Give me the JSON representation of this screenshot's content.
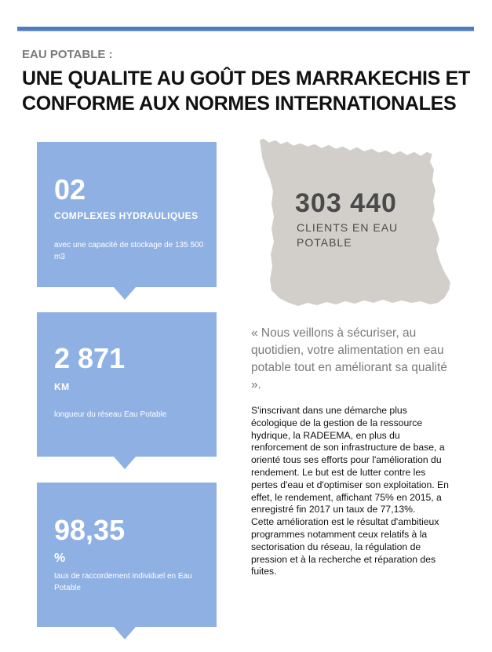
{
  "header": {
    "kicker": "EAU POTABLE :",
    "title": "UNE QUALITE AU GOÛT DES MARRAKECHIS ET CONFORME AUX NORMES INTERNATIONALES"
  },
  "stats": [
    {
      "value": "02",
      "unit": "COMPLEXES  HYDRAULIQUES",
      "description": "avec une capacité  de stockage de 135 500 m3"
    },
    {
      "value": "2 871",
      "unit": "KM",
      "description": "longueur du réseau Eau Potable"
    },
    {
      "value": "98,35",
      "unit": "%",
      "description": "taux de raccordement  individuel  en Eau Potable"
    }
  ],
  "clients": {
    "value": "303 440",
    "label": "CLIENTS EN EAU POTABLE"
  },
  "quote": "«  Nous veillons à sécuriser, au quotidien, votre alimentation en eau potable tout en améliorant sa qualité  ».",
  "body": {
    "paragraph1": "S'inscrivant dans une démarche plus écologique de la gestion de la ressource hydrique, la RADEEMA, en plus du renforcement de son infrastructure de base, a orienté tous ses efforts pour l'amélioration du rendement. Le but  est de lutter contre les pertes d'eau et d'optimiser son exploitation.  En effet, le rendement, affichant 75% en 2015, a enregistré fin 2017 un taux de 77,13%.",
    "paragraph2": "Cette amélioration est le résultat d'ambitieux programmes notamment ceux relatifs à la sectorisation du réseau, la régulation de pression et à la recherche et réparation des fuites."
  },
  "colors": {
    "accent_line": "#4f7dc4",
    "stat_box": "#8fb0e3",
    "map_fill": "#d2cfcb"
  }
}
